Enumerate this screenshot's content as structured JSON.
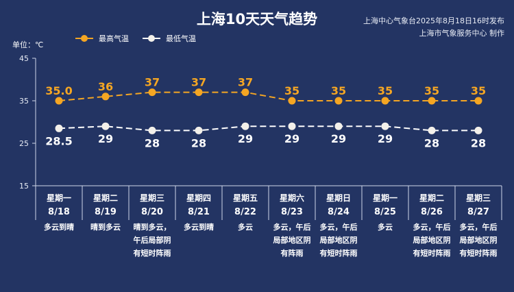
{
  "header": {
    "title": "上海10天天气趋势",
    "source": "上海中心气象台2025年8月18日16时发布",
    "producer": "上海市气象服务中心 制作"
  },
  "colors": {
    "background": "#233463",
    "high": "#f5a623",
    "low": "#ffffff"
  },
  "chart_data": {
    "type": "line",
    "title": "上海10天天气趋势",
    "ylabel": "单位：℃",
    "ylim": [
      15,
      45
    ],
    "yticks": [
      "45",
      "35",
      "25",
      "15"
    ],
    "grid": false,
    "legend": "top-left",
    "categories": [
      {
        "weekday": "星期一",
        "date": "8/18",
        "weather": [
          "多云到晴"
        ]
      },
      {
        "weekday": "星期二",
        "date": "8/19",
        "weather": [
          "晴到多云"
        ]
      },
      {
        "weekday": "星期三",
        "date": "8/20",
        "weather": [
          "晴到多云，",
          "午后局部阴",
          "有短时阵雨"
        ]
      },
      {
        "weekday": "星期四",
        "date": "8/21",
        "weather": [
          "多云到晴"
        ]
      },
      {
        "weekday": "星期五",
        "date": "8/22",
        "weather": [
          "多云"
        ]
      },
      {
        "weekday": "星期六",
        "date": "8/23",
        "weather": [
          "多云，午后",
          "局部地区阴",
          "有阵雨"
        ]
      },
      {
        "weekday": "星期日",
        "date": "8/24",
        "weather": [
          "多云，午后",
          "局部地区阴",
          "有短时阵雨"
        ]
      },
      {
        "weekday": "星期一",
        "date": "8/25",
        "weather": [
          "多云"
        ]
      },
      {
        "weekday": "星期二",
        "date": "8/26",
        "weather": [
          "多云，午后",
          "局部地区阴",
          "有短时阵雨"
        ]
      },
      {
        "weekday": "星期三",
        "date": "8/27",
        "weather": [
          "多云，午后",
          "局部地区阴",
          "有短时阵雨"
        ]
      }
    ],
    "series": [
      {
        "name": "最高气温",
        "values": [
          35.0,
          36,
          37,
          37,
          37,
          35,
          35,
          35,
          35,
          35
        ],
        "labels": [
          "35.0",
          "36",
          "37",
          "37",
          "37",
          "35",
          "35",
          "35",
          "35",
          "35"
        ]
      },
      {
        "name": "最低气温",
        "values": [
          28.5,
          29,
          28,
          28,
          29,
          29,
          29,
          29,
          28,
          28
        ],
        "labels": [
          "28.5",
          "29",
          "28",
          "28",
          "29",
          "29",
          "29",
          "29",
          "28",
          "28"
        ]
      }
    ]
  }
}
